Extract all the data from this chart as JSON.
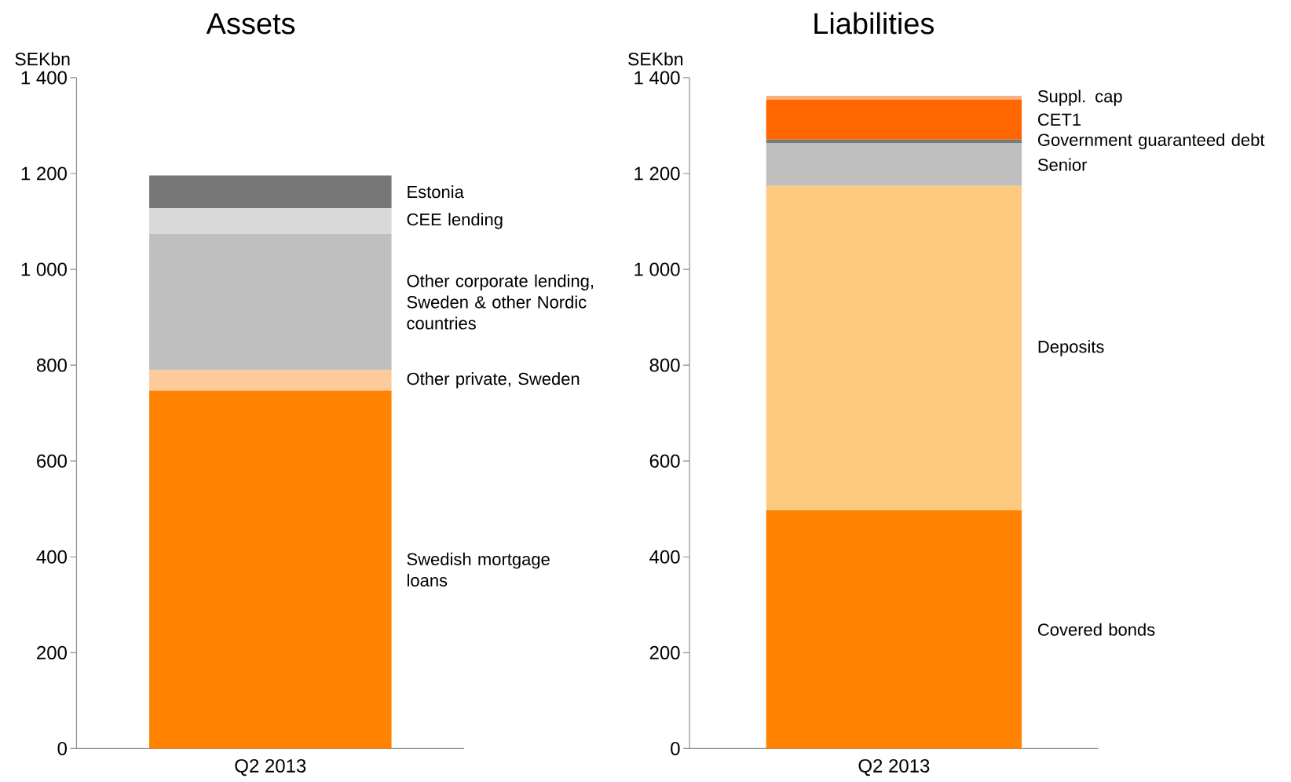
{
  "chart_data": [
    {
      "type": "bar",
      "stacked": true,
      "title": "Assets",
      "ylabel": "SEKbn",
      "categories": [
        "Q2 2013"
      ],
      "ylim": [
        0,
        1400
      ],
      "yticks": [
        0,
        200,
        400,
        600,
        800,
        {
          "value": 1000,
          "label": "1 000"
        },
        {
          "value": 1200,
          "label": "1 200"
        },
        {
          "value": 1400,
          "label": "1 400"
        }
      ],
      "series": [
        {
          "name": "Swedish mortgage loans",
          "color": "#ff8200",
          "values": [
            747
          ]
        },
        {
          "name": "Other private, Sweden",
          "color": "#fdcb9b",
          "values": [
            43
          ]
        },
        {
          "name": "Other corporate lending, Sweden & other Nordic countries",
          "color": "#bfbfbf",
          "values": [
            284
          ]
        },
        {
          "name": "CEE lending",
          "color": "#d9d9d9",
          "values": [
            54
          ]
        },
        {
          "name": "Estonia",
          "color": "#777777",
          "values": [
            68
          ]
        }
      ]
    },
    {
      "type": "bar",
      "stacked": true,
      "title": "Liabilities",
      "ylabel": "SEKbn",
      "categories": [
        "Q2 2013"
      ],
      "ylim": [
        0,
        1400
      ],
      "yticks": [
        0,
        200,
        400,
        600,
        800,
        {
          "value": 1000,
          "label": "1 000"
        },
        {
          "value": 1200,
          "label": "1 200"
        },
        {
          "value": 1400,
          "label": "1 400"
        }
      ],
      "series": [
        {
          "name": "Covered bonds",
          "color": "#ff8200",
          "values": [
            497
          ]
        },
        {
          "name": "Deposits",
          "color": "#fdca80",
          "values": [
            677
          ]
        },
        {
          "name": "Senior",
          "color": "#bfbfbf",
          "values": [
            89
          ]
        },
        {
          "name": "Government guaranteed debt",
          "color": "#7a7a7a",
          "values": [
            8
          ]
        },
        {
          "name": "CET1",
          "color": "#ff6600",
          "values": [
            83
          ]
        },
        {
          "name": "Suppl. cap",
          "color": "#fdaf7f",
          "values": [
            8
          ]
        }
      ]
    }
  ]
}
